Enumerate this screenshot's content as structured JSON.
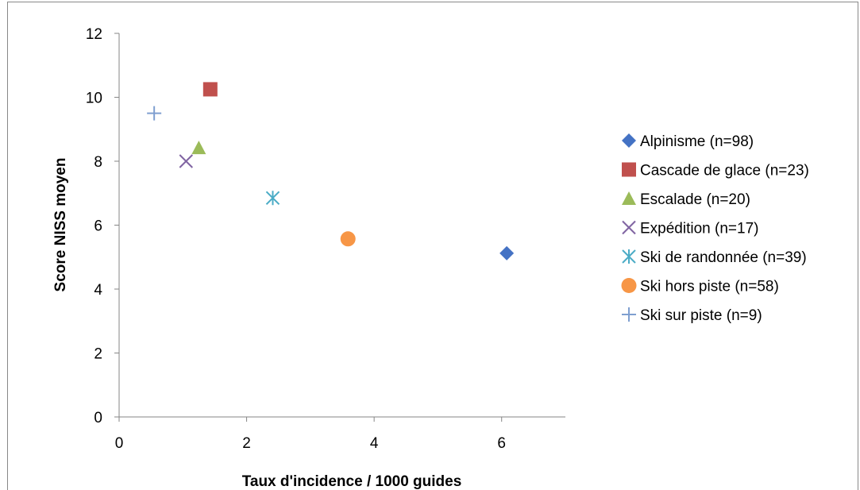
{
  "chart_data": {
    "type": "scatter",
    "title": "",
    "xlabel": "Taux d'incidence / 1000 guides",
    "ylabel": "Score NISS moyen",
    "xlim": [
      0,
      7
    ],
    "ylim": [
      0,
      12
    ],
    "xticks": [
      0,
      2,
      4,
      6
    ],
    "yticks": [
      0,
      2,
      4,
      6,
      8,
      10,
      12
    ],
    "grid": false,
    "legend_position": "right",
    "series": [
      {
        "name": "Alpinisme (n=98)",
        "marker": "diamond",
        "color": "#4472C4",
        "x": 6.08,
        "y": 5.12
      },
      {
        "name": "Cascade de glace (n=23)",
        "marker": "square",
        "color": "#C0504D",
        "x": 1.43,
        "y": 10.25
      },
      {
        "name": "Escalade (n=20)",
        "marker": "triangle",
        "color": "#9BBB59",
        "x": 1.25,
        "y": 8.42
      },
      {
        "name": "Expédition (n=17)",
        "marker": "x",
        "color": "#8064A2",
        "x": 1.05,
        "y": 8.0
      },
      {
        "name": "Ski de randonnée (n=39)",
        "marker": "asterisk",
        "color": "#4BACC6",
        "x": 2.41,
        "y": 6.85
      },
      {
        "name": "Ski hors piste (n=58)",
        "marker": "circle",
        "color": "#F79646",
        "x": 3.59,
        "y": 5.57
      },
      {
        "name": "Ski sur piste (n=9)",
        "marker": "plus",
        "color": "#7F9FD0",
        "x": 0.55,
        "y": 9.5
      }
    ]
  }
}
